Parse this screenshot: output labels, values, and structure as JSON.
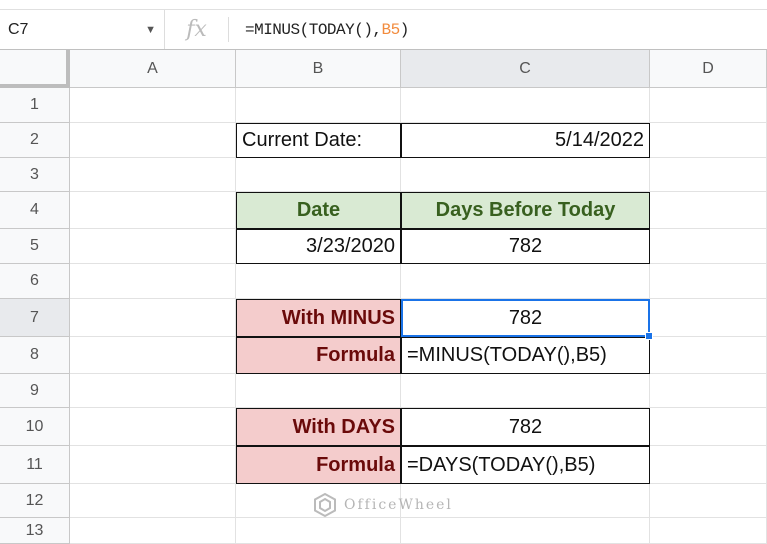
{
  "formula_bar": {
    "name_box": "C7",
    "fx_label": "fx",
    "formula_prefix": "=MINUS(TODAY(),",
    "formula_ref": "B5",
    "formula_suffix": ")"
  },
  "columns": [
    "A",
    "B",
    "C",
    "D"
  ],
  "rows": [
    "1",
    "2",
    "3",
    "4",
    "5",
    "6",
    "7",
    "8",
    "9",
    "10",
    "11",
    "12",
    "13"
  ],
  "cells": {
    "B2": "Current Date:",
    "C2": "5/14/2022",
    "B4": "Date",
    "C4": "Days Before Today",
    "B5": "3/23/2020",
    "C5": "782",
    "B7": "With MINUS",
    "C7": "782",
    "B8": "Formula",
    "C8": "=MINUS(TODAY(),B5)",
    "B10": "With DAYS",
    "C10": "782",
    "B11": "Formula",
    "C11": "=DAYS(TODAY(),B5)"
  },
  "watermark": "OfficeWheel",
  "colors": {
    "header_fill": "#d9ead3",
    "label_fill": "#f4cccc",
    "selection": "#1a73e8"
  }
}
